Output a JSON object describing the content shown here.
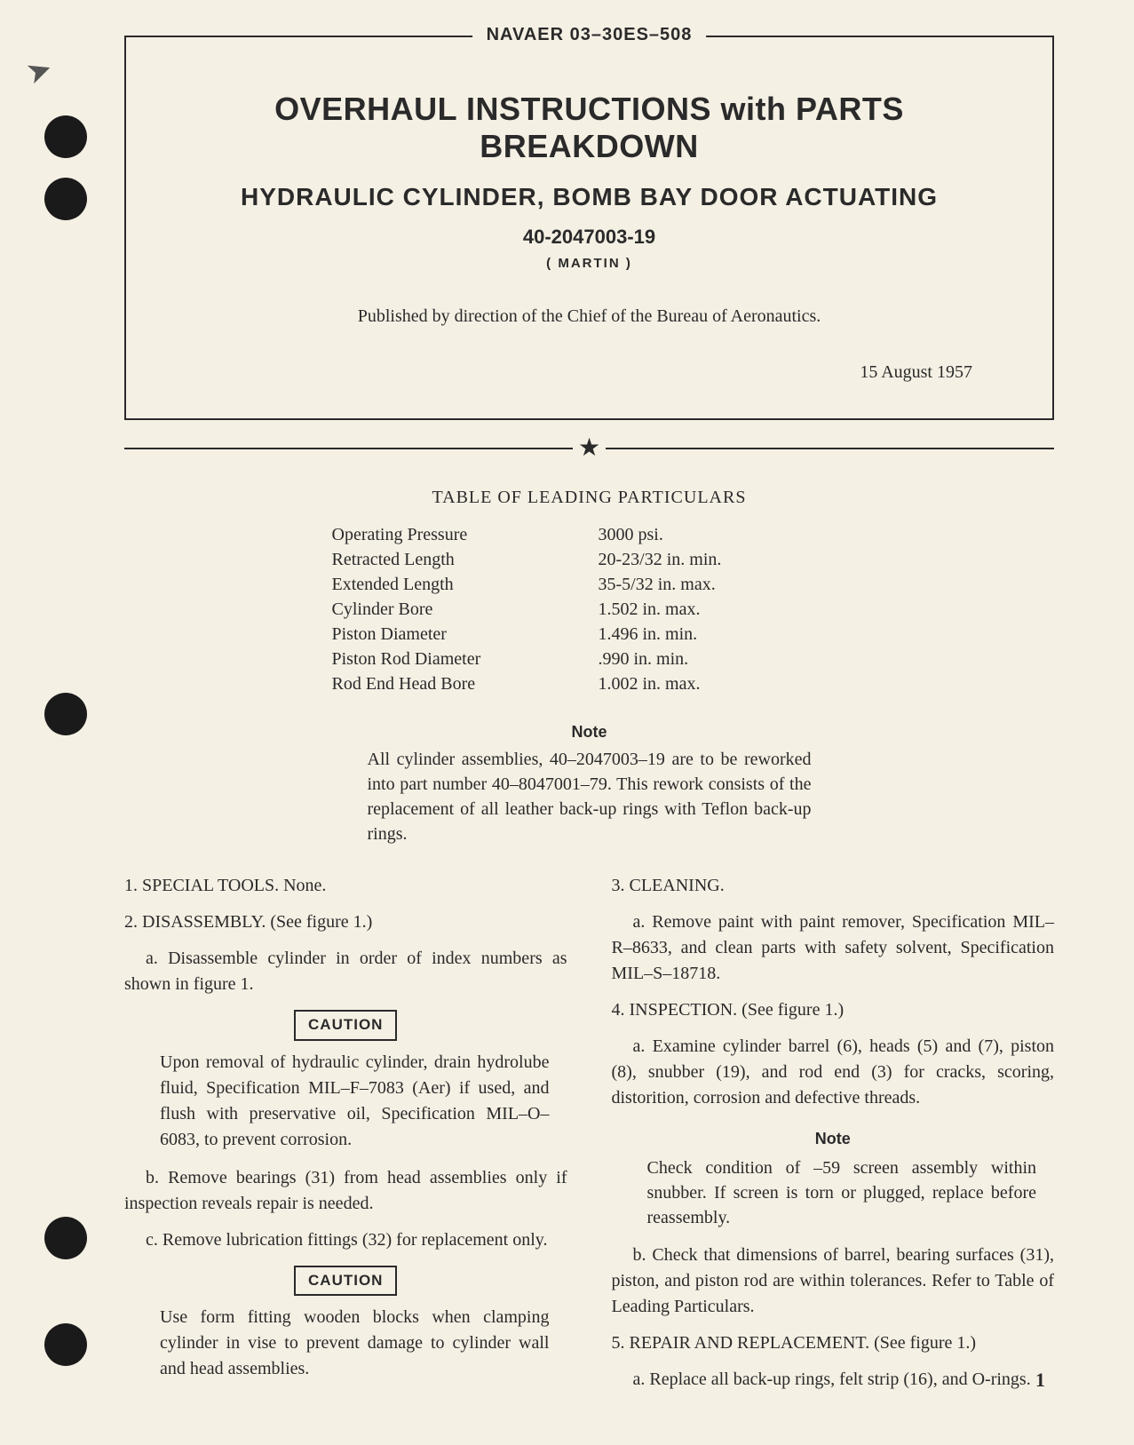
{
  "doc_id": "NAVAER 03–30ES–508",
  "header": {
    "title_main": "OVERHAUL INSTRUCTIONS with PARTS BREAKDOWN",
    "title_sub": "HYDRAULIC CYLINDER, BOMB BAY DOOR ACTUATING",
    "part_number": "40-2047003-19",
    "manufacturer": "( MARTIN )",
    "published_by": "Published by direction of the Chief of the Bureau of Aeronautics.",
    "date": "15 August 1957"
  },
  "particulars": {
    "title": "TABLE OF LEADING PARTICULARS",
    "rows": [
      {
        "label": "Operating Pressure",
        "value": "3000 psi."
      },
      {
        "label": "Retracted Length",
        "value": "20-23/32 in. min."
      },
      {
        "label": "Extended Length",
        "value": "35-5/32 in. max."
      },
      {
        "label": "Cylinder Bore",
        "value": "1.502 in. max."
      },
      {
        "label": "Piston Diameter",
        "value": "1.496 in. min."
      },
      {
        "label": "Piston Rod Diameter",
        "value": ".990 in. min."
      },
      {
        "label": "Rod End Head Bore",
        "value": "1.002 in. max."
      }
    ]
  },
  "top_note": {
    "heading": "Note",
    "body": "All cylinder assemblies, 40–2047003–19 are to be reworked into part number 40–8047001–79. This rework consists of the replacement of all leather back-up rings with Teflon back-up rings."
  },
  "left_col": {
    "p1": "1. SPECIAL TOOLS. None.",
    "p2": "2. DISASSEMBLY. (See figure 1.)",
    "p2a": "a. Disassemble cylinder in order of index numbers as shown in figure 1.",
    "caution1_label": "CAUTION",
    "caution1_body": "Upon removal of hydraulic cylinder, drain hydrolube fluid, Specification MIL–F–7083 (Aer) if used, and flush with preservative oil, Specification MIL–O–6083, to prevent corrosion.",
    "p2b": "b. Remove bearings (31) from head assemblies only if inspection reveals repair is needed.",
    "p2c": "c. Remove lubrication fittings (32) for replacement only.",
    "caution2_label": "CAUTION",
    "caution2_body": "Use form fitting wooden blocks when clamping cylinder in vise to prevent damage to cylinder wall and head assemblies."
  },
  "right_col": {
    "p3": "3. CLEANING.",
    "p3a": "a. Remove paint with paint remover, Specification MIL–R–8633, and clean parts with safety solvent, Specification MIL–S–18718.",
    "p4": "4. INSPECTION. (See figure 1.)",
    "p4a": "a. Examine cylinder barrel (6), heads (5) and (7), piston (8), snubber (19), and rod end (3) for cracks, scoring, distorition, corrosion and defective threads.",
    "note_heading": "Note",
    "note_body": "Check condition of –59 screen assembly within snubber. If screen is torn or plugged, replace before reassembly.",
    "p4b": "b. Check that dimensions of barrel, bearing surfaces (31), piston, and piston rod are within tolerances. Refer to Table of Leading Particulars.",
    "p5": "5. REPAIR AND REPLACEMENT. (See figure 1.)",
    "p5a": "a. Replace all back-up rings, felt strip (16), and O-rings."
  },
  "page_number": "1"
}
